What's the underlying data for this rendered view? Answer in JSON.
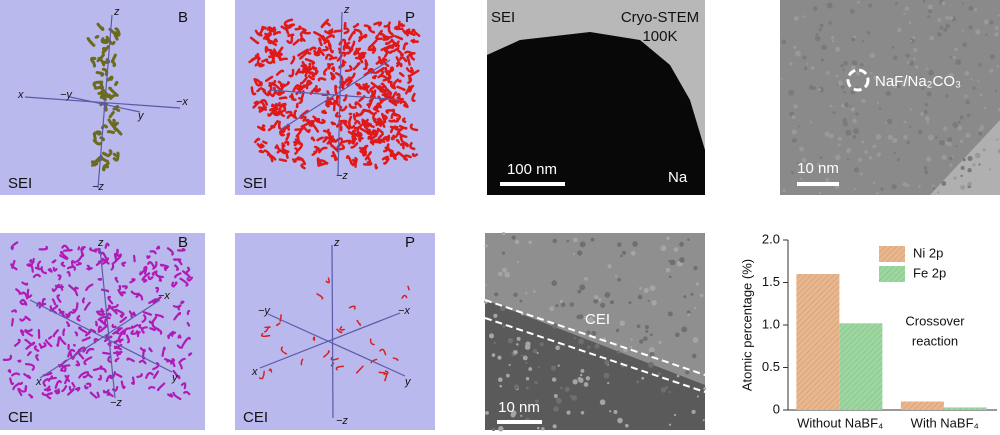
{
  "panels": [
    {
      "label": "B",
      "region": "SEI",
      "axes": [
        "z",
        "x",
        "−y",
        "y",
        "−x",
        "−z"
      ]
    },
    {
      "label": "P",
      "region": "SEI",
      "axes": [
        "z",
        "−z"
      ]
    },
    {
      "region": "SEI",
      "title": [
        "Cryo-STEM",
        "100K"
      ],
      "scale_bar": "100 nm",
      "material": "Na"
    },
    {
      "annotation": "NaF/Na₂CO₃",
      "scale_bar": "10 nm"
    },
    {
      "label": "B",
      "region": "CEI",
      "axes": [
        "z",
        "x",
        "y",
        "−x",
        "−z"
      ]
    },
    {
      "label": "P",
      "region": "CEI",
      "axes": [
        "z",
        "−y",
        "−x",
        "x",
        "y",
        "−z"
      ]
    },
    {
      "region": "CEI",
      "scale_bar": "10 nm"
    }
  ],
  "chart_data": {
    "type": "bar",
    "ylabel": "Atomic percentage (%)",
    "categories": [
      "Without NaBF₄",
      "With NaBF₄"
    ],
    "series": [
      {
        "name": "Ni 2p",
        "color": "#e9b78f",
        "values": [
          1.6,
          0.1
        ]
      },
      {
        "name": "Fe 2p",
        "color": "#9ed6a2",
        "values": [
          1.02,
          0.03
        ]
      }
    ],
    "ylim": [
      0,
      2.0
    ],
    "yticks": [
      0,
      0.5,
      {
        "value": 1.0,
        "label": "1.0"
      },
      1.5,
      {
        "value": 2.0,
        "label": "2.0"
      }
    ],
    "annotation": [
      "Crossover",
      "reaction"
    ],
    "legend": "upper right"
  }
}
